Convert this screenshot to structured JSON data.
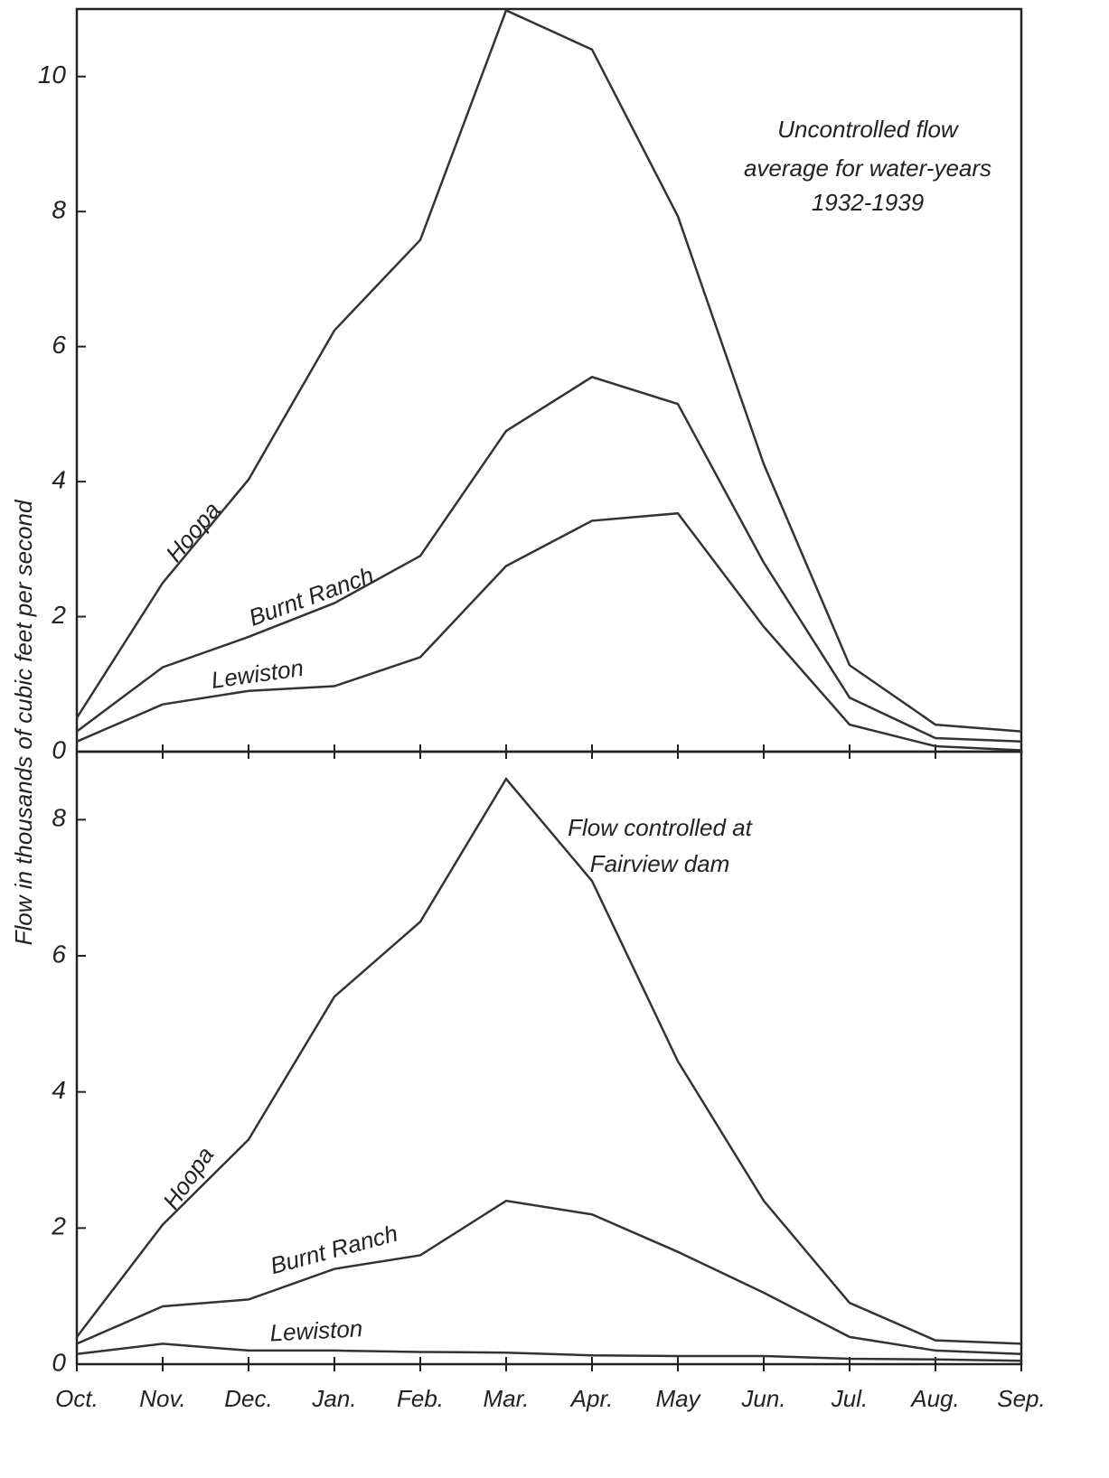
{
  "chart_data": [
    {
      "type": "line",
      "ylabel": "Flow in thousands of cubic feet per second",
      "annotation": [
        "Uncontrolled flow",
        "average for water-years",
        "1932-1939"
      ],
      "categories": [
        null,
        null,
        null,
        null,
        null,
        null,
        null,
        null,
        null,
        null,
        null,
        null
      ],
      "ylim": [
        0,
        11
      ],
      "yticks": [
        0,
        2,
        4,
        6,
        8,
        10
      ],
      "series": [
        {
          "name": "Hoopa",
          "color": "#333333",
          "values": [
            0.5,
            2.5,
            4.03,
            6.24,
            7.58,
            10.98,
            10.4,
            7.93,
            4.26,
            1.28,
            0.4,
            0.3
          ]
        },
        {
          "name": "Burnt Ranch",
          "color": "#333333",
          "values": [
            0.3,
            1.25,
            1.7,
            2.2,
            2.9,
            4.75,
            5.55,
            5.15,
            2.8,
            0.8,
            0.2,
            0.15
          ]
        },
        {
          "name": "Lewiston",
          "color": "#333333",
          "values": [
            0.15,
            0.7,
            0.9,
            0.97,
            1.4,
            2.75,
            3.42,
            3.53,
            1.85,
            0.4,
            0.08,
            0.02
          ]
        }
      ]
    },
    {
      "type": "line",
      "annotation": [
        "Flow controlled at",
        "Fairview dam"
      ],
      "categories": [
        "Oct.",
        "Nov.",
        "Dec.",
        "Jan.",
        "Feb.",
        "Mar.",
        "Apr.",
        "May",
        "Jun.",
        "Jul.",
        "Aug.",
        "Sep."
      ],
      "ylim": [
        0,
        9
      ],
      "yticks": [
        0,
        2,
        4,
        6,
        8
      ],
      "series": [
        {
          "name": "Hoopa",
          "color": "#333333",
          "values": [
            0.4,
            2.05,
            3.3,
            5.4,
            6.5,
            8.6,
            7.1,
            4.45,
            2.4,
            0.9,
            0.35,
            0.3
          ]
        },
        {
          "name": "Burnt Ranch",
          "color": "#333333",
          "values": [
            0.3,
            0.85,
            0.95,
            1.4,
            1.6,
            2.4,
            2.2,
            1.65,
            1.05,
            0.4,
            0.2,
            0.15
          ]
        },
        {
          "name": "Lewiston",
          "color": "#333333",
          "values": [
            0.15,
            0.3,
            0.2,
            0.2,
            0.18,
            0.17,
            0.13,
            0.12,
            0.12,
            0.08,
            0.07,
            0.05
          ]
        }
      ]
    }
  ]
}
